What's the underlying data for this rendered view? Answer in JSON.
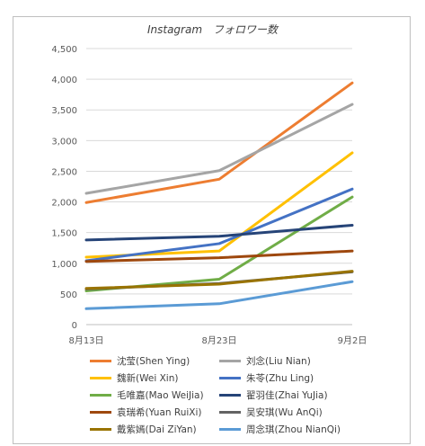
{
  "chart_data": {
    "type": "line",
    "title": "Instagram　フォロワー数",
    "categories": [
      "8月13日",
      "8月23日",
      "9月2日"
    ],
    "ylim": [
      0,
      4500
    ],
    "yticks": [
      "0",
      "500",
      "1,000",
      "1,500",
      "2,000",
      "2,500",
      "3,000",
      "3,500",
      "4,000",
      "4,500"
    ],
    "ytick_values": [
      0,
      500,
      1000,
      1500,
      2000,
      2500,
      3000,
      3500,
      4000,
      4500
    ],
    "grid": true,
    "legend_position": "bottom",
    "series": [
      {
        "name": "沈莹(Shen Ying)",
        "color": "#ED7D31",
        "values": [
          1990,
          2370,
          3940
        ]
      },
      {
        "name": "刘念(Liu Nian)",
        "color": "#A5A5A5",
        "values": [
          2140,
          2510,
          3590
        ]
      },
      {
        "name": "魏新(Wei Xin)",
        "color": "#FFC000",
        "values": [
          1100,
          1200,
          2800
        ]
      },
      {
        "name": "朱苓(Zhu Ling)",
        "color": "#4472C4",
        "values": [
          1040,
          1320,
          2210
        ]
      },
      {
        "name": "毛唯嘉(Mao WeiJia)",
        "color": "#70AD47",
        "values": [
          550,
          740,
          2080
        ]
      },
      {
        "name": "翟羽佳(Zhai YuJia)",
        "color": "#264478",
        "values": [
          1380,
          1440,
          1620
        ]
      },
      {
        "name": "袁瑞希(Yuan RuiXi)",
        "color": "#9E480E",
        "values": [
          1030,
          1090,
          1200
        ]
      },
      {
        "name": "吴安琪(Wu AnQi)",
        "color": "#636363",
        "values": [
          580,
          670,
          860
        ]
      },
      {
        "name": "戴紫嫣(Dai ZiYan)",
        "color": "#997300",
        "values": [
          590,
          660,
          870
        ]
      },
      {
        "name": "周念琪(Zhou NianQi)",
        "color": "#5B9BD5",
        "values": [
          260,
          340,
          700
        ]
      }
    ]
  }
}
